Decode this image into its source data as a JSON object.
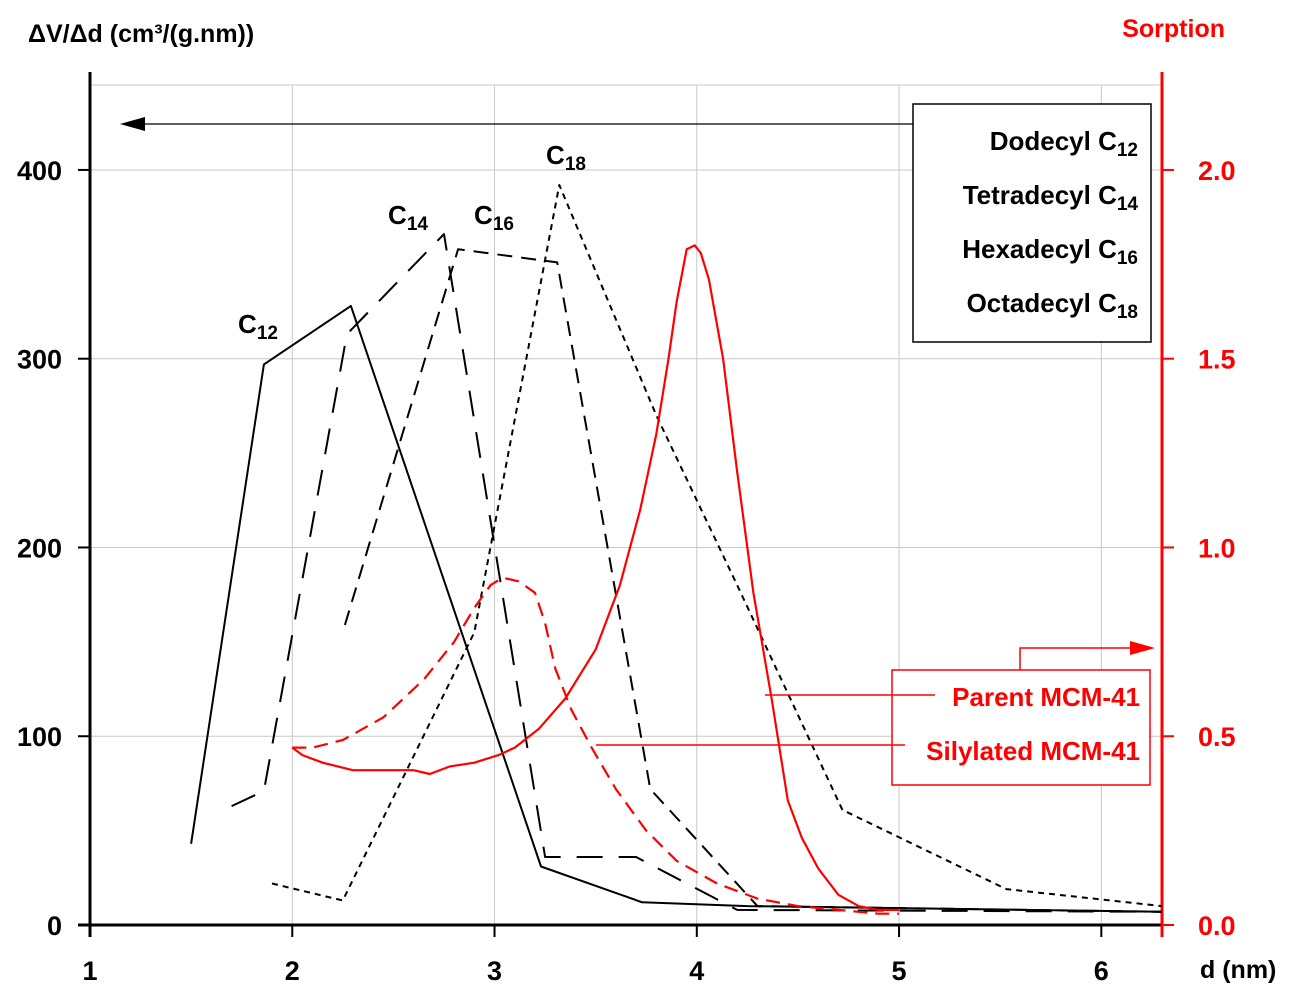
{
  "chart_data": {
    "type": "line",
    "left_axis": {
      "title": "ΔV/Δd (cm³/(g.nm))",
      "ticks": [
        "0",
        "100",
        "200",
        "300",
        "400"
      ],
      "range": [
        0,
        445
      ],
      "color": "#000000"
    },
    "right_axis": {
      "title": "Sorption",
      "ticks": [
        "0.0",
        "0.5",
        "1.0",
        "1.5",
        "2.0"
      ],
      "range": [
        0,
        2.225
      ],
      "color": "#ff0000"
    },
    "x_axis": {
      "label": "d (nm)",
      "ticks": [
        "1",
        "2",
        "3",
        "4",
        "5",
        "6"
      ],
      "range": [
        1,
        6.3
      ]
    },
    "grid": true,
    "legend_left": {
      "placement": "top-right",
      "entries": [
        {
          "base": "Dodecyl C",
          "sub": "12"
        },
        {
          "base": "Tetradecyl C",
          "sub": "14"
        },
        {
          "base": "Hexadecyl C",
          "sub": "16"
        },
        {
          "base": "Octadecyl C",
          "sub": "18"
        }
      ]
    },
    "legend_right": {
      "placement": "bottom-right",
      "entries": [
        "Parent MCM-41",
        "Silylated MCM-41"
      ]
    },
    "series": [
      {
        "name": "C12",
        "label_base": "C",
        "label_sub": "12",
        "axis": "left",
        "color": "#000000",
        "dash": "solid",
        "x": [
          1.5,
          1.86,
          2.29,
          3.23,
          3.73,
          4.25,
          6.3
        ],
        "y": [
          43,
          297,
          328,
          31,
          12,
          10,
          7
        ]
      },
      {
        "name": "C14",
        "label_base": "C",
        "label_sub": "14",
        "axis": "left",
        "color": "#000000",
        "dash": "long",
        "x": [
          1.7,
          1.86,
          2.27,
          2.75,
          3.25,
          3.7,
          4.2,
          6.3
        ],
        "y": [
          63,
          71,
          313,
          366,
          36,
          36,
          8,
          7
        ]
      },
      {
        "name": "C16",
        "label_base": "C",
        "label_sub": "16",
        "axis": "left",
        "color": "#000000",
        "dash": "medium",
        "x": [
          2.26,
          2.82,
          3.31,
          3.77,
          4.3,
          6.3
        ],
        "y": [
          159,
          358,
          351,
          72,
          10,
          7
        ]
      },
      {
        "name": "C18",
        "label_base": "C",
        "label_sub": "18",
        "axis": "left",
        "color": "#000000",
        "dash": "short",
        "x": [
          1.9,
          2.25,
          2.9,
          3.32,
          3.8,
          4.2,
          4.72,
          5.53,
          6.3
        ],
        "y": [
          22,
          13,
          155,
          392,
          270,
          180,
          61,
          19,
          10
        ]
      },
      {
        "name": "Parent MCM-41",
        "axis": "right",
        "color": "#ff0000",
        "dash": "solid",
        "x": [
          2.0,
          2.05,
          2.15,
          2.3,
          2.5,
          2.6,
          2.68,
          2.78,
          2.9,
          3.02,
          3.1,
          3.22,
          3.35,
          3.5,
          3.62,
          3.72,
          3.8,
          3.86,
          3.9,
          3.95,
          3.99,
          4.02,
          4.06,
          4.13,
          4.2,
          4.28,
          4.37,
          4.45,
          4.52,
          4.6,
          4.7,
          4.8,
          4.9,
          5.0
        ],
        "y": [
          0.47,
          0.45,
          0.43,
          0.41,
          0.41,
          0.41,
          0.4,
          0.42,
          0.43,
          0.45,
          0.47,
          0.52,
          0.6,
          0.73,
          0.9,
          1.1,
          1.3,
          1.5,
          1.65,
          1.79,
          1.8,
          1.78,
          1.71,
          1.5,
          1.2,
          0.88,
          0.6,
          0.33,
          0.23,
          0.15,
          0.08,
          0.05,
          0.04,
          0.04
        ]
      },
      {
        "name": "Silylated MCM-41",
        "axis": "right",
        "color": "#ff0000",
        "dash": "dashed",
        "x": [
          2.0,
          2.1,
          2.25,
          2.45,
          2.65,
          2.8,
          2.9,
          2.98,
          3.04,
          3.12,
          3.2,
          3.25,
          3.3,
          3.38,
          3.48,
          3.6,
          3.75,
          3.9,
          4.1,
          4.3,
          4.5,
          4.7,
          4.9,
          5.0
        ],
        "y": [
          0.47,
          0.47,
          0.49,
          0.55,
          0.65,
          0.75,
          0.84,
          0.9,
          0.92,
          0.91,
          0.88,
          0.8,
          0.68,
          0.57,
          0.47,
          0.36,
          0.25,
          0.17,
          0.11,
          0.07,
          0.05,
          0.04,
          0.03,
          0.03
        ]
      }
    ]
  }
}
